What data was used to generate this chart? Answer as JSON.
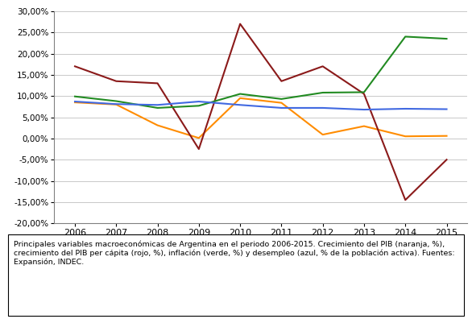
{
  "years": [
    2006,
    2007,
    2008,
    2009,
    2010,
    2011,
    2012,
    2013,
    2014,
    2015
  ],
  "pib_naranja": [
    8.5,
    8.0,
    3.1,
    0.1,
    9.5,
    8.4,
    0.9,
    2.9,
    0.5,
    0.6
  ],
  "pib_percapita_rojo": [
    17.0,
    13.5,
    13.0,
    -2.5,
    27.0,
    13.5,
    17.0,
    10.5,
    -14.5,
    -5.0
  ],
  "inflacion_verde": [
    9.9,
    8.8,
    7.2,
    7.7,
    10.5,
    9.3,
    10.8,
    10.9,
    24.0,
    23.5
  ],
  "desempleo_azul": [
    8.7,
    8.1,
    7.9,
    8.7,
    7.9,
    7.2,
    7.2,
    6.8,
    7.0,
    6.9
  ],
  "ylim": [
    -20,
    30
  ],
  "yticks": [
    -20,
    -15,
    -10,
    -5,
    0,
    5,
    10,
    15,
    20,
    25,
    30
  ],
  "color_naranja": "#FF8C00",
  "color_rojo": "#8B1a1a",
  "color_verde": "#228B22",
  "color_azul": "#4169E1",
  "caption": "Principales variables macroeconómicas de Argentina en el periodo 2006-2015. Crecimiento del PIB (naranja, %), crecimiento del PIB per cápita (rojo, %), inflación (verde, %) y desempleo (azul, % de la población activa). Fuentes: Expansión, INDEC.",
  "background_color": "#FFFFFF",
  "grid_color": "#C8C8C8",
  "spine_color": "#808080"
}
